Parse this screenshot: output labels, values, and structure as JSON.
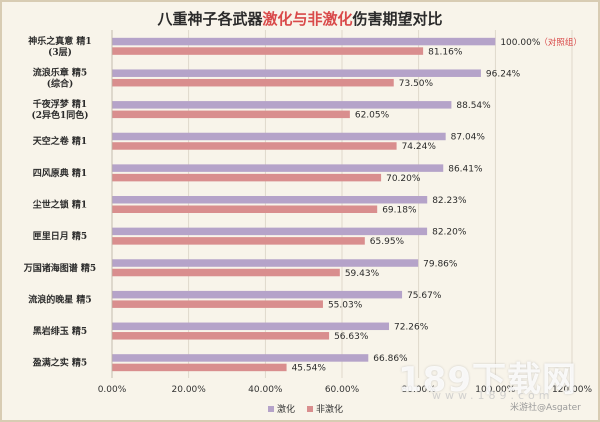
{
  "title": {
    "part1": "八重神子各武器",
    "highlight": "激化与非激化",
    "part2": "伤害期望对比"
  },
  "colors": {
    "series1": "#b5a3c9",
    "series2": "#d98e8e",
    "annotation": "#d94a4a",
    "grid": "#d9d2c4"
  },
  "watermark": {
    "brand": "189下载网",
    "url": "www.189.com",
    "credit": "米游社@Asgater"
  },
  "chart_data": {
    "type": "bar",
    "orientation": "horizontal",
    "categories": [
      [
        "神乐之真意 精1",
        "(3层)"
      ],
      [
        "流浪乐章 精5",
        "(综合)"
      ],
      [
        "千夜浮梦 精1",
        "(2异色1同色)"
      ],
      [
        "天空之卷 精1"
      ],
      [
        "四风原典 精1"
      ],
      [
        "尘世之锁 精1"
      ],
      [
        "匣里日月 精5"
      ],
      [
        "万国诸海图谱 精5"
      ],
      [
        "流浪的晚星 精5"
      ],
      [
        "黑岩绯玉 精5"
      ],
      [
        "盈满之实 精5"
      ]
    ],
    "series": [
      {
        "name": "激化",
        "values": [
          100.0,
          96.24,
          88.54,
          87.04,
          86.41,
          82.23,
          82.2,
          79.86,
          75.67,
          72.26,
          66.86
        ]
      },
      {
        "name": "非激化",
        "values": [
          81.16,
          73.5,
          62.05,
          74.24,
          70.2,
          69.18,
          65.95,
          59.43,
          55.03,
          56.63,
          45.54
        ]
      }
    ],
    "value_labels": [
      [
        "100.00%",
        "96.24%",
        "88.54%",
        "87.04%",
        "86.41%",
        "82.23%",
        "82.20%",
        "79.86%",
        "75.67%",
        "72.26%",
        "66.86%"
      ],
      [
        "81.16%",
        "73.50%",
        "62.05%",
        "74.24%",
        "70.20%",
        "69.18%",
        "65.95%",
        "59.43%",
        "55.03%",
        "56.63%",
        "45.54%"
      ]
    ],
    "annotation": {
      "row": 0,
      "text": "（对照组）"
    },
    "xlim": [
      0,
      120
    ],
    "xticks": [
      "0.00%",
      "20.00%",
      "40.00%",
      "60.00%",
      "80.00%",
      "100.00%",
      "120.00%"
    ],
    "grid": true,
    "legend_position": "bottom"
  }
}
